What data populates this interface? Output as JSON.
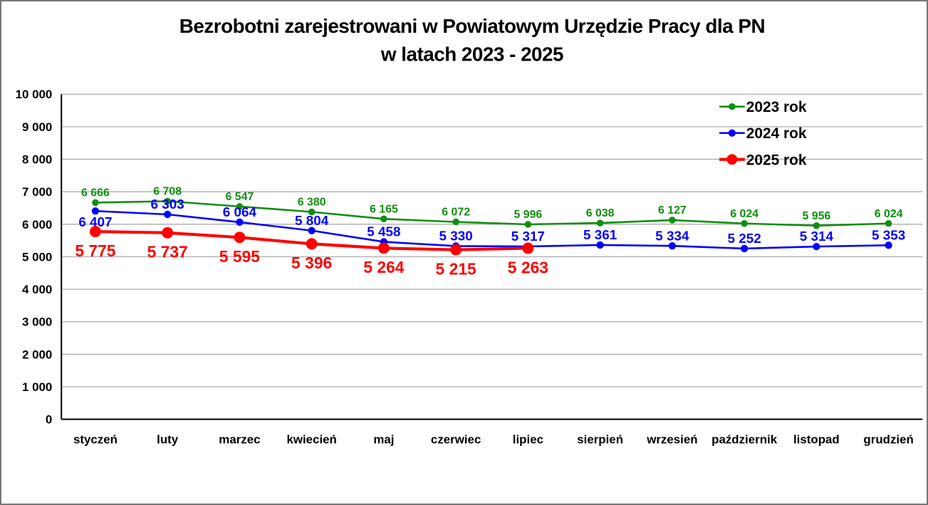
{
  "title": {
    "line1": "Bezrobotni zarejestrowani w Powiatowym Urzędzie Pracy dla PN",
    "line2": "w latach 2023 - 2025"
  },
  "colors": {
    "series_2023": "#0f8f0f",
    "series_2024": "#0000ff",
    "series_2025": "#ff0000",
    "gridline": "#ababab",
    "axis": "#000000",
    "text": "#000000"
  },
  "chart_data": {
    "type": "line",
    "title": "Bezrobotni zarejestrowani w Powiatowym Urzędzie Pracy dla PN w latach 2023 - 2025",
    "xlabel": "",
    "ylabel": "",
    "ylim": [
      0,
      10000
    ],
    "ytick_step": 1000,
    "grid": true,
    "legend_position": "upper-right",
    "number_format": "space-thousands",
    "categories": [
      "styczeń",
      "luty",
      "marzec",
      "kwiecień",
      "maj",
      "czerwiec",
      "lipiec",
      "sierpień",
      "wrzesień",
      "październik",
      "listopad",
      "grudzień"
    ],
    "series": [
      {
        "name": "2023 rok",
        "color": "#0f8f0f",
        "values": [
          6666,
          6708,
          6547,
          6380,
          6165,
          6072,
          5996,
          6038,
          6127,
          6024,
          5956,
          6024
        ],
        "line_width": 2.6,
        "marker_radius": 4.8,
        "label_font_size": 16,
        "label_dy": -9,
        "label_overrides": {}
      },
      {
        "name": "2024 rok",
        "color": "#0000ff",
        "values": [
          6407,
          6303,
          6064,
          5804,
          5458,
          5330,
          5317,
          5361,
          5334,
          5252,
          5314,
          5353
        ],
        "line_width": 2.6,
        "marker_radius": 5.2,
        "label_font_size": 19,
        "label_dy": -8,
        "label_overrides": {
          "0": 22
        }
      },
      {
        "name": "2025 rok",
        "color": "#ff0000",
        "values": [
          5775,
          5737,
          5595,
          5396,
          5264,
          5215,
          5263
        ],
        "line_width": 4.2,
        "marker_radius": 8,
        "label_font_size": 23,
        "label_dy": 35,
        "label_overrides": {}
      }
    ]
  }
}
